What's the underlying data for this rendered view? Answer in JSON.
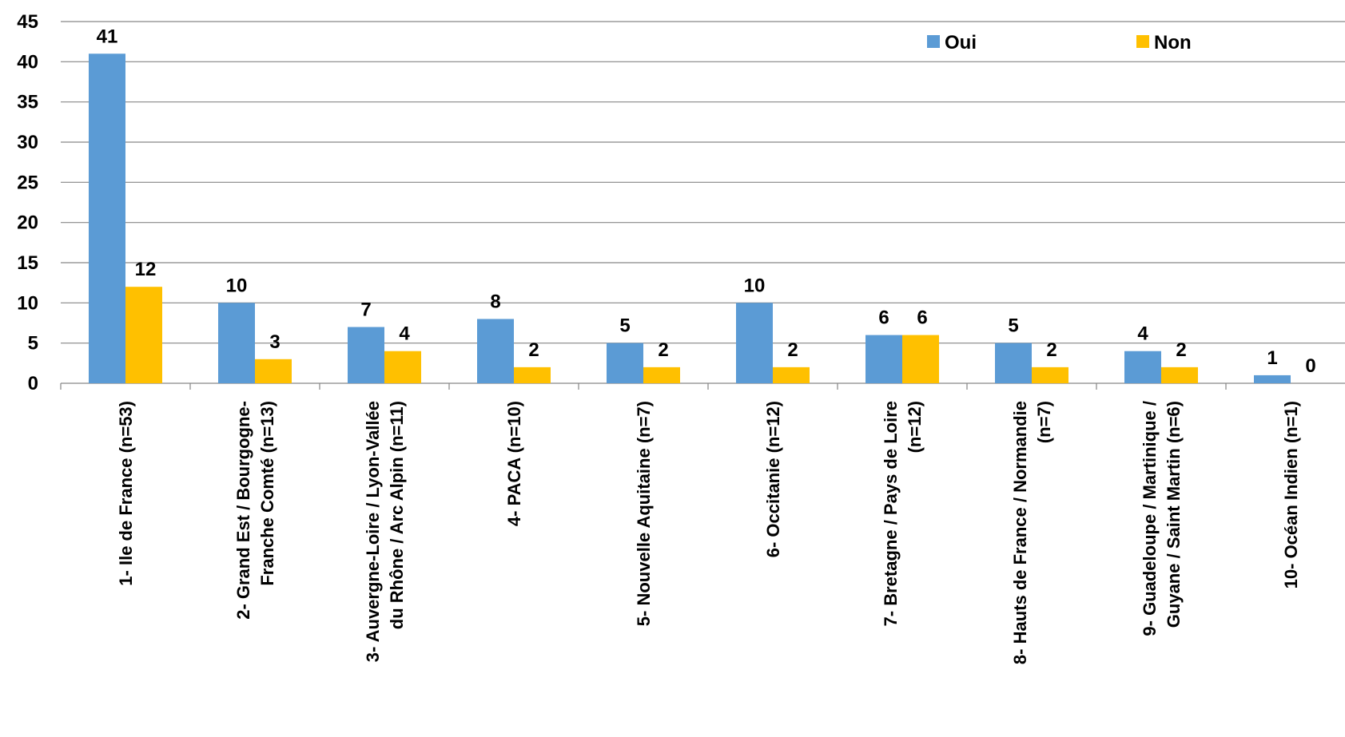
{
  "colors": {
    "oui": "#5B9BD5",
    "non": "#FFC000",
    "grid": "#868686"
  },
  "chart_data": {
    "type": "bar",
    "categories": [
      [
        "1- Ile de France (n=53)"
      ],
      [
        "2- Grand Est / Bourgogne-",
        "Franche Comté (n=13)"
      ],
      [
        "3- Auvergne-Loire / Lyon-Vallée",
        "du Rhône / Arc Alpin (n=11)"
      ],
      [
        "4- PACA (n=10)"
      ],
      [
        "5- Nouvelle Aquitaine (n=7)"
      ],
      [
        "6- Occitanie (n=12)"
      ],
      [
        "7- Bretagne / Pays de Loire",
        "(n=12)"
      ],
      [
        "8- Hauts de France / Normandie",
        "(n=7)"
      ],
      [
        "9- Guadeloupe / Martinique /",
        "Guyane / Saint Martin (n=6)"
      ],
      [
        "10- Océan Indien (n=1)"
      ]
    ],
    "series": [
      {
        "name": "Oui",
        "values": [
          41,
          10,
          7,
          8,
          5,
          10,
          6,
          5,
          4,
          1
        ]
      },
      {
        "name": "Non",
        "values": [
          12,
          3,
          4,
          2,
          2,
          2,
          6,
          2,
          2,
          0
        ]
      }
    ],
    "y_ticks": [
      "0",
      "5",
      "10",
      "15",
      "20",
      "25",
      "30",
      "35",
      "40",
      "45"
    ],
    "ylim": [
      0,
      45
    ],
    "grid": true,
    "legend_position": "top-right",
    "data_labels": true
  }
}
